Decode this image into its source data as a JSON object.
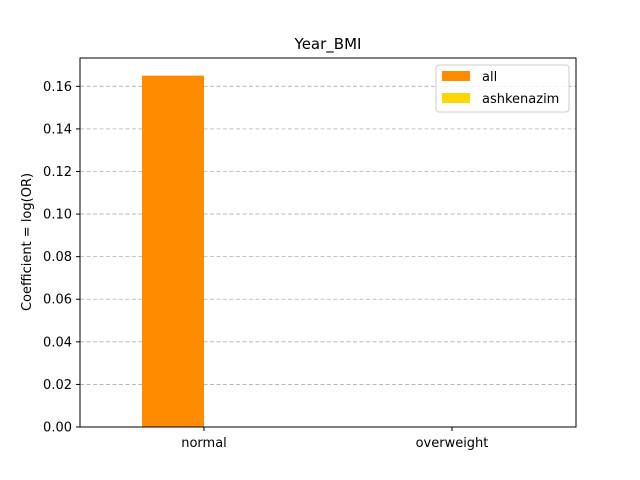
{
  "chart_data": {
    "type": "bar",
    "title": "Year_BMI",
    "xlabel": "",
    "ylabel": "Coefficient = log(OR)",
    "categories": [
      "normal",
      "overweight"
    ],
    "series": [
      {
        "name": "all",
        "color": "#ff8c00",
        "values": [
          0.165,
          0.0
        ]
      },
      {
        "name": "ashkenazim",
        "color": "#ffd700",
        "values": [
          0.0,
          0.0
        ]
      }
    ],
    "ylim": [
      0,
      0.1733
    ],
    "yticks": [
      0.0,
      0.02,
      0.04,
      0.06,
      0.08,
      0.1,
      0.12,
      0.14,
      0.16
    ],
    "ytick_labels": [
      "0.00",
      "0.02",
      "0.04",
      "0.06",
      "0.08",
      "0.10",
      "0.12",
      "0.14",
      "0.16"
    ],
    "grid": "y-dashed",
    "legend_position": "upper-right"
  }
}
